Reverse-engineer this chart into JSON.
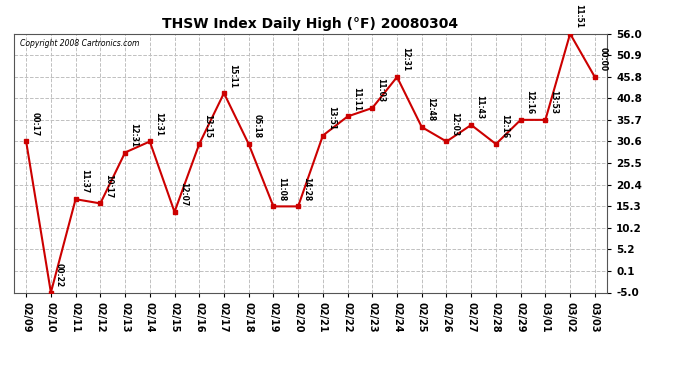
{
  "title": "THSW Index Daily High (°F) 20080304",
  "copyright": "Copyright 2008 Cartronics.com",
  "background_color": "#ffffff",
  "plot_bg_color": "#ffffff",
  "grid_color": "#c0c0c0",
  "line_color": "#cc0000",
  "marker_color": "#cc0000",
  "x_labels": [
    "02/09",
    "02/10",
    "02/11",
    "02/12",
    "02/13",
    "02/14",
    "02/15",
    "02/16",
    "02/17",
    "02/18",
    "02/19",
    "02/20",
    "02/21",
    "02/22",
    "02/23",
    "02/24",
    "02/25",
    "02/26",
    "02/27",
    "02/28",
    "02/29",
    "03/01",
    "03/02",
    "03/03"
  ],
  "y_values": [
    30.6,
    -5.0,
    17.0,
    16.0,
    28.0,
    30.6,
    14.0,
    30.0,
    42.0,
    30.0,
    15.3,
    15.3,
    32.0,
    36.5,
    38.5,
    45.8,
    34.0,
    30.6,
    34.5,
    30.0,
    35.7,
    35.7,
    56.0,
    45.8
  ],
  "point_labels": [
    "00:17",
    "00:22",
    "11:37",
    "10:17",
    "12:31",
    "12:31",
    "12:07",
    "13:15",
    "15:11",
    "05:18",
    "11:08",
    "14:28",
    "13:51",
    "11:11",
    "11:03",
    "12:31",
    "12:48",
    "12:03",
    "11:43",
    "12:16",
    "12:16",
    "13:53",
    "11:51",
    "00:00"
  ],
  "ylim": [
    -5.0,
    56.0
  ],
  "yticks": [
    -5.0,
    0.1,
    5.2,
    10.2,
    15.3,
    20.4,
    25.5,
    30.6,
    35.7,
    40.8,
    45.8,
    50.9,
    56.0
  ]
}
